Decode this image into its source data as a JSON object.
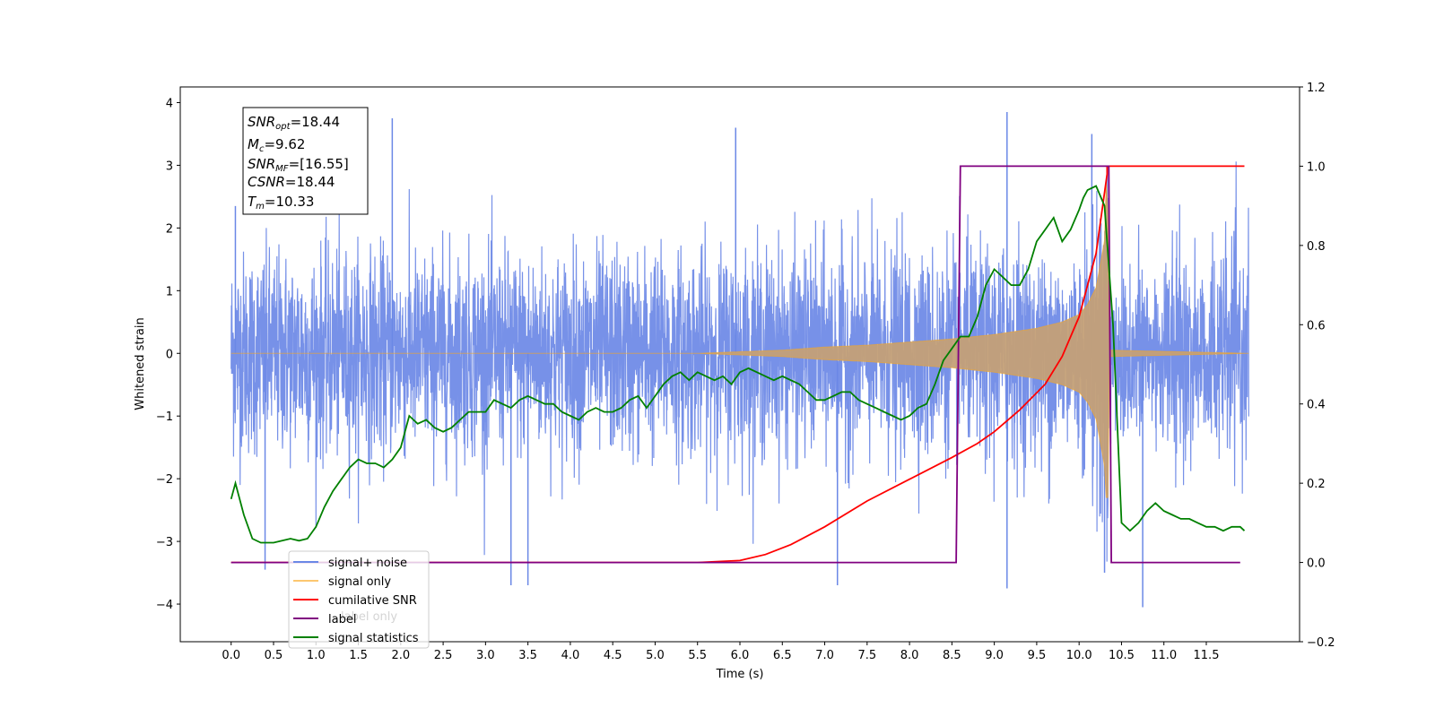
{
  "chart_data": {
    "type": "line",
    "xlabel": "Time (s)",
    "ylabel": "Whitened strain",
    "xlim": [
      -0.6,
      12.6
    ],
    "ylim": [
      -4.6,
      4.25
    ],
    "y2lim": [
      -0.2,
      1.2
    ],
    "xticks": [
      "0.0",
      "0.5",
      "1.0",
      "1.5",
      "2.0",
      "2.5",
      "3.0",
      "3.5",
      "4.0",
      "4.5",
      "5.0",
      "5.5",
      "6.0",
      "6.5",
      "7.0",
      "7.5",
      "8.0",
      "8.5",
      "9.0",
      "9.5",
      "10.0",
      "10.5",
      "11.0",
      "11.5"
    ],
    "yticks": [
      "4",
      "3",
      "2",
      "1",
      "0",
      "−1",
      "−2",
      "−3",
      "−4"
    ],
    "y2ticks": [
      "1.2",
      "1.0",
      "0.8",
      "0.6",
      "0.4",
      "0.2",
      "0.0",
      "−0.2"
    ],
    "annotation": {
      "snr_opt": {
        "base": "SNR",
        "sub": "opt",
        "value": "=18.44"
      },
      "mc": {
        "base": "M",
        "sub": "c",
        "value": "=9.62"
      },
      "snr_mf": {
        "base": "SNR",
        "sub": "MF",
        "value": "=[16.55]"
      },
      "csnr": {
        "base": "CSNR",
        "sub": "",
        "value": "=18.44"
      },
      "tm": {
        "base": "T",
        "sub": "m",
        "value": "=10.33"
      }
    },
    "legend": {
      "placement": "lower-left",
      "entries": [
        "signal+ noise",
        "signal only",
        "cumilative SNR",
        "label",
        "signal statistics"
      ],
      "ghost_text": "label only"
    },
    "colors": {
      "signal_noise": "#6b88e6",
      "signal_only": "#f5a623",
      "cumulative_snr": "#ff0000",
      "label": "#800080",
      "signal_statistics": "#008000",
      "envelope_fill": "#c4a077"
    },
    "series": [
      {
        "name": "signal+ noise",
        "axis": "left",
        "kind": "noise",
        "x_range": [
          0.0,
          12.0
        ],
        "sigma": 0.8,
        "spike_peaks": [
          {
            "x": 0.05,
            "y": 2.35
          },
          {
            "x": 0.4,
            "y": -3.45
          },
          {
            "x": 1.9,
            "y": 3.75
          },
          {
            "x": 3.3,
            "y": -3.7
          },
          {
            "x": 3.5,
            "y": -3.7
          },
          {
            "x": 5.95,
            "y": 3.6
          },
          {
            "x": 7.15,
            "y": -3.7
          },
          {
            "x": 9.15,
            "y": 3.85
          },
          {
            "x": 9.15,
            "y": -3.75
          },
          {
            "x": 10.15,
            "y": 3.5
          },
          {
            "x": 10.3,
            "y": -3.5
          },
          {
            "x": 10.75,
            "y": -4.05
          }
        ]
      },
      {
        "name": "signal only",
        "axis": "left",
        "kind": "chirp_envelope",
        "x": [
          0.0,
          5.5,
          6.5,
          7.0,
          7.5,
          8.0,
          8.5,
          9.0,
          9.5,
          9.8,
          10.0,
          10.1,
          10.2,
          10.3,
          10.33,
          10.36,
          12.0
        ],
        "y": [
          0.0,
          0.0,
          0.05,
          0.1,
          0.13,
          0.18,
          0.23,
          0.3,
          0.4,
          0.5,
          0.62,
          0.78,
          1.05,
          1.8,
          3.25,
          0.05,
          0.0
        ]
      },
      {
        "name": "cumilative SNR",
        "axis": "right",
        "x": [
          0.0,
          5.5,
          6.0,
          6.3,
          6.6,
          7.0,
          7.5,
          8.0,
          8.5,
          8.8,
          9.0,
          9.3,
          9.6,
          9.8,
          10.0,
          10.2,
          10.33,
          10.33,
          11.95
        ],
        "y": [
          0.0,
          0.0,
          0.005,
          0.02,
          0.045,
          0.09,
          0.155,
          0.21,
          0.265,
          0.3,
          0.33,
          0.385,
          0.45,
          0.52,
          0.62,
          0.78,
          0.98,
          1.0,
          1.0
        ]
      },
      {
        "name": "label",
        "axis": "right",
        "x": [
          0.0,
          8.55,
          8.6,
          10.35,
          10.38,
          11.9
        ],
        "y": [
          0.0,
          0.0,
          1.0,
          1.0,
          0.0,
          0.0
        ]
      },
      {
        "name": "signal statistics",
        "axis": "right",
        "x": [
          0.0,
          0.05,
          0.15,
          0.25,
          0.35,
          0.5,
          0.6,
          0.7,
          0.8,
          0.9,
          1.0,
          1.1,
          1.2,
          1.3,
          1.4,
          1.5,
          1.6,
          1.7,
          1.8,
          1.9,
          2.0,
          2.1,
          2.2,
          2.3,
          2.4,
          2.5,
          2.6,
          2.7,
          2.8,
          3.0,
          3.1,
          3.2,
          3.3,
          3.4,
          3.5,
          3.6,
          3.7,
          3.8,
          3.9,
          4.0,
          4.1,
          4.2,
          4.3,
          4.4,
          4.5,
          4.6,
          4.7,
          4.8,
          4.9,
          5.0,
          5.1,
          5.2,
          5.3,
          5.4,
          5.5,
          5.6,
          5.7,
          5.8,
          5.9,
          6.0,
          6.1,
          6.2,
          6.3,
          6.4,
          6.5,
          6.6,
          6.7,
          6.8,
          6.9,
          7.0,
          7.1,
          7.2,
          7.3,
          7.4,
          7.5,
          7.6,
          7.7,
          7.8,
          7.9,
          8.0,
          8.1,
          8.2,
          8.3,
          8.4,
          8.5,
          8.6,
          8.7,
          8.8,
          8.9,
          9.0,
          9.1,
          9.2,
          9.3,
          9.4,
          9.5,
          9.6,
          9.7,
          9.8,
          9.9,
          10.0,
          10.05,
          10.1,
          10.2,
          10.3,
          10.4,
          10.5,
          10.6,
          10.7,
          10.8,
          10.9,
          11.0,
          11.1,
          11.2,
          11.3,
          11.4,
          11.5,
          11.6,
          11.7,
          11.8,
          11.9,
          11.95
        ],
        "y": [
          0.16,
          0.2,
          0.12,
          0.06,
          0.05,
          0.05,
          0.055,
          0.06,
          0.055,
          0.06,
          0.09,
          0.14,
          0.18,
          0.21,
          0.24,
          0.26,
          0.25,
          0.25,
          0.24,
          0.26,
          0.29,
          0.37,
          0.35,
          0.36,
          0.34,
          0.33,
          0.34,
          0.36,
          0.38,
          0.38,
          0.41,
          0.4,
          0.39,
          0.41,
          0.42,
          0.41,
          0.4,
          0.4,
          0.38,
          0.37,
          0.36,
          0.38,
          0.39,
          0.38,
          0.38,
          0.39,
          0.41,
          0.42,
          0.39,
          0.42,
          0.45,
          0.47,
          0.48,
          0.46,
          0.48,
          0.47,
          0.46,
          0.47,
          0.45,
          0.48,
          0.49,
          0.48,
          0.47,
          0.46,
          0.47,
          0.46,
          0.45,
          0.43,
          0.41,
          0.41,
          0.42,
          0.43,
          0.43,
          0.41,
          0.4,
          0.39,
          0.38,
          0.37,
          0.36,
          0.37,
          0.39,
          0.4,
          0.45,
          0.51,
          0.54,
          0.57,
          0.57,
          0.62,
          0.7,
          0.74,
          0.72,
          0.7,
          0.7,
          0.74,
          0.81,
          0.84,
          0.87,
          0.81,
          0.84,
          0.89,
          0.92,
          0.94,
          0.95,
          0.9,
          0.6,
          0.1,
          0.08,
          0.1,
          0.13,
          0.15,
          0.13,
          0.12,
          0.11,
          0.11,
          0.1,
          0.09,
          0.09,
          0.08,
          0.09,
          0.09,
          0.08
        ]
      }
    ]
  }
}
